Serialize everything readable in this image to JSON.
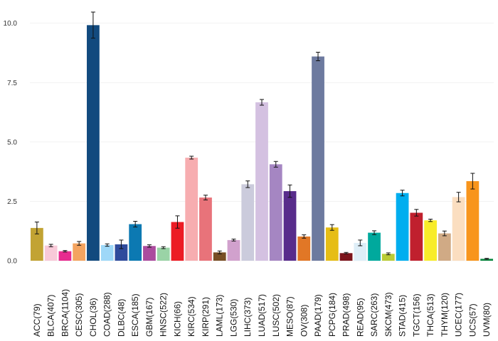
{
  "chart_data": {
    "type": "bar",
    "title": "",
    "xlabel": "",
    "ylabel": "",
    "ylim": [
      0,
      10.5
    ],
    "yticks": [
      0,
      2.5,
      5,
      7.5,
      10
    ],
    "ytick_labels": [
      "0.0",
      "2.5",
      "5.0",
      "7.5",
      "10.0"
    ],
    "grid": true,
    "error_bars": true,
    "categories": [
      "ACC(79)",
      "BLCA(407)",
      "BRCA(1104)",
      "CESC(305)",
      "CHOL(36)",
      "COAD(288)",
      "DLBC(48)",
      "ESCA(185)",
      "GBM(167)",
      "HNSC(522)",
      "KICH(66)",
      "KIRC(534)",
      "KIRP(291)",
      "LAML(173)",
      "LGG(530)",
      "LIHC(373)",
      "LUAD(517)",
      "LUSC(502)",
      "MESO(87)",
      "OV(308)",
      "PAAD(179)",
      "PCPG(184)",
      "PRAD(498)",
      "READ(95)",
      "SARC(263)",
      "SKCM(473)",
      "STAD(415)",
      "TGCT(156)",
      "THCA(513)",
      "THYM(120)",
      "UCEC(177)",
      "UCS(57)",
      "UVM(80)"
    ],
    "values": [
      1.38,
      0.64,
      0.4,
      0.73,
      9.92,
      0.66,
      0.69,
      1.54,
      0.62,
      0.55,
      1.63,
      4.34,
      2.66,
      0.35,
      0.87,
      3.22,
      6.67,
      4.06,
      2.93,
      1.02,
      8.6,
      1.4,
      0.32,
      0.75,
      1.18,
      0.29,
      2.85,
      2.02,
      1.7,
      1.15,
      2.68,
      3.35,
      0.08
    ],
    "errors": [
      0.25,
      0.05,
      0.03,
      0.08,
      0.55,
      0.05,
      0.18,
      0.12,
      0.05,
      0.04,
      0.26,
      0.06,
      0.1,
      0.06,
      0.04,
      0.14,
      0.12,
      0.12,
      0.26,
      0.07,
      0.18,
      0.12,
      0.03,
      0.12,
      0.08,
      0.04,
      0.12,
      0.14,
      0.05,
      0.1,
      0.2,
      0.33,
      0.02
    ],
    "colors": [
      "#c2a333",
      "#f8c9d8",
      "#e72b8f",
      "#f4a460",
      "#124a7e",
      "#9ed8f8",
      "#2f4b9c",
      "#0c79b2",
      "#ab4b9e",
      "#9ad3a6",
      "#ec1c24",
      "#f7adb0",
      "#e8737a",
      "#784e24",
      "#d1a1cd",
      "#cbcbdc",
      "#d4c1e1",
      "#a586c2",
      "#582c8b",
      "#e17726",
      "#6d7a9f",
      "#e6bd15",
      "#7c151c",
      "#deeef7",
      "#00a99d",
      "#bacc35",
      "#00aeef",
      "#c0202e",
      "#f8ec2a",
      "#d0aa85",
      "#fbdec0",
      "#f8951c",
      "#09883f"
    ]
  }
}
